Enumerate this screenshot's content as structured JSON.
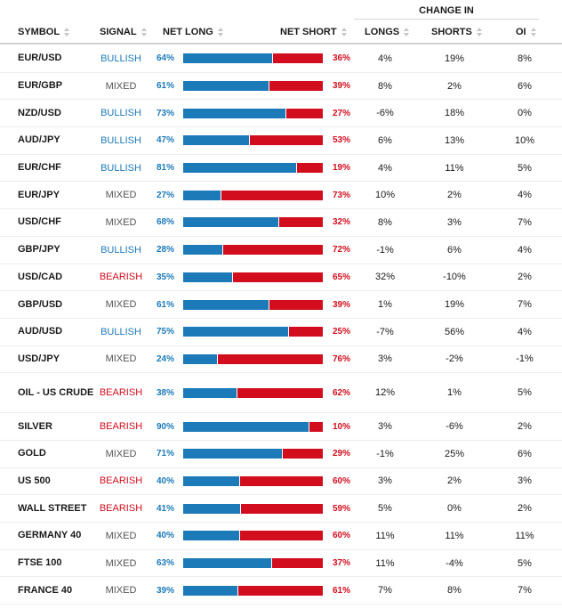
{
  "group_header": "CHANGE IN",
  "headers": {
    "symbol": "SYMBOL",
    "signal": "SIGNAL",
    "net_long": "NET LONG",
    "net_short": "NET SHORT",
    "longs": "LONGS",
    "shorts": "SHORTS",
    "oi": "OI"
  },
  "colors": {
    "long": "#1c7ab8",
    "short": "#d20e1e",
    "mixed": "#555555"
  },
  "rows": [
    {
      "symbol": "EUR/USD",
      "signal": "BULLISH",
      "net_long": 64,
      "net_long_label": "64%",
      "net_short_label": "36%",
      "longs": "4%",
      "shorts": "19%",
      "oi": "8%"
    },
    {
      "symbol": "EUR/GBP",
      "signal": "MIXED",
      "net_long": 61,
      "net_long_label": "61%",
      "net_short_label": "39%",
      "longs": "8%",
      "shorts": "2%",
      "oi": "6%"
    },
    {
      "symbol": "NZD/USD",
      "signal": "BULLISH",
      "net_long": 73,
      "net_long_label": "73%",
      "net_short_label": "27%",
      "longs": "-6%",
      "shorts": "18%",
      "oi": "0%"
    },
    {
      "symbol": "AUD/JPY",
      "signal": "BULLISH",
      "net_long": 47,
      "net_long_label": "47%",
      "net_short_label": "53%",
      "longs": "6%",
      "shorts": "13%",
      "oi": "10%"
    },
    {
      "symbol": "EUR/CHF",
      "signal": "BULLISH",
      "net_long": 81,
      "net_long_label": "81%",
      "net_short_label": "19%",
      "longs": "4%",
      "shorts": "11%",
      "oi": "5%"
    },
    {
      "symbol": "EUR/JPY",
      "signal": "MIXED",
      "net_long": 27,
      "net_long_label": "27%",
      "net_short_label": "73%",
      "longs": "10%",
      "shorts": "2%",
      "oi": "4%"
    },
    {
      "symbol": "USD/CHF",
      "signal": "MIXED",
      "net_long": 68,
      "net_long_label": "68%",
      "net_short_label": "32%",
      "longs": "8%",
      "shorts": "3%",
      "oi": "7%"
    },
    {
      "symbol": "GBP/JPY",
      "signal": "BULLISH",
      "net_long": 28,
      "net_long_label": "28%",
      "net_short_label": "72%",
      "longs": "-1%",
      "shorts": "6%",
      "oi": "4%"
    },
    {
      "symbol": "USD/CAD",
      "signal": "BEARISH",
      "net_long": 35,
      "net_long_label": "35%",
      "net_short_label": "65%",
      "longs": "32%",
      "shorts": "-10%",
      "oi": "2%"
    },
    {
      "symbol": "GBP/USD",
      "signal": "MIXED",
      "net_long": 61,
      "net_long_label": "61%",
      "net_short_label": "39%",
      "longs": "1%",
      "shorts": "19%",
      "oi": "7%"
    },
    {
      "symbol": "AUD/USD",
      "signal": "BULLISH",
      "net_long": 75,
      "net_long_label": "75%",
      "net_short_label": "25%",
      "longs": "-7%",
      "shorts": "56%",
      "oi": "4%"
    },
    {
      "symbol": "USD/JPY",
      "signal": "MIXED",
      "net_long": 24,
      "net_long_label": "24%",
      "net_short_label": "76%",
      "longs": "3%",
      "shorts": "-2%",
      "oi": "-1%"
    },
    {
      "symbol": "OIL - US CRUDE",
      "signal": "BEARISH",
      "net_long": 38,
      "net_long_label": "38%",
      "net_short_label": "62%",
      "longs": "12%",
      "shorts": "1%",
      "oi": "5%"
    },
    {
      "symbol": "SILVER",
      "signal": "BEARISH",
      "net_long": 90,
      "net_long_label": "90%",
      "net_short_label": "10%",
      "longs": "3%",
      "shorts": "-6%",
      "oi": "2%"
    },
    {
      "symbol": "GOLD",
      "signal": "MIXED",
      "net_long": 71,
      "net_long_label": "71%",
      "net_short_label": "29%",
      "longs": "-1%",
      "shorts": "25%",
      "oi": "6%"
    },
    {
      "symbol": "US 500",
      "signal": "BEARISH",
      "net_long": 40,
      "net_long_label": "40%",
      "net_short_label": "60%",
      "longs": "3%",
      "shorts": "2%",
      "oi": "3%"
    },
    {
      "symbol": "WALL STREET",
      "signal": "BEARISH",
      "net_long": 41,
      "net_long_label": "41%",
      "net_short_label": "59%",
      "longs": "5%",
      "shorts": "0%",
      "oi": "2%"
    },
    {
      "symbol": "GERMANY 40",
      "signal": "MIXED",
      "net_long": 40,
      "net_long_label": "40%",
      "net_short_label": "60%",
      "longs": "11%",
      "shorts": "11%",
      "oi": "11%"
    },
    {
      "symbol": "FTSE 100",
      "signal": "MIXED",
      "net_long": 63,
      "net_long_label": "63%",
      "net_short_label": "37%",
      "longs": "11%",
      "shorts": "-4%",
      "oi": "5%"
    },
    {
      "symbol": "FRANCE 40",
      "signal": "MIXED",
      "net_long": 39,
      "net_long_label": "39%",
      "net_short_label": "61%",
      "longs": "7%",
      "shorts": "8%",
      "oi": "7%"
    }
  ]
}
